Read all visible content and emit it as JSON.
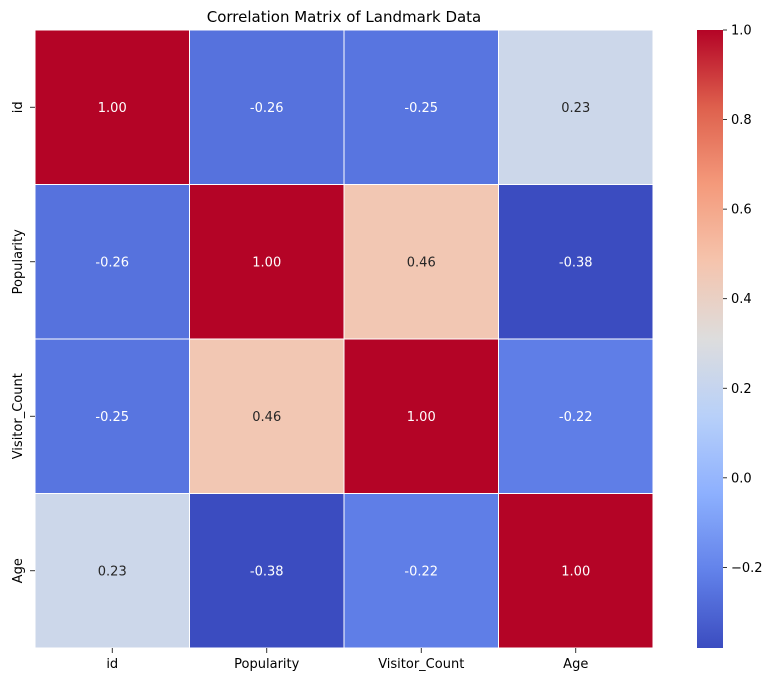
{
  "chart_data": {
    "type": "heatmap",
    "title": "Correlation Matrix of Landmark Data",
    "xlabel": "",
    "ylabel": "",
    "x_categories": [
      "id",
      "Popularity",
      "Visitor_Count",
      "Age"
    ],
    "y_categories": [
      "id",
      "Popularity",
      "Visitor_Count",
      "Age"
    ],
    "values": [
      [
        1.0,
        -0.26,
        -0.25,
        0.23
      ],
      [
        -0.26,
        1.0,
        0.46,
        -0.38
      ],
      [
        -0.25,
        0.46,
        1.0,
        -0.22
      ],
      [
        0.23,
        -0.38,
        -0.22,
        1.0
      ]
    ],
    "value_labels": [
      [
        "1.00",
        "-0.26",
        "-0.25",
        "0.23"
      ],
      [
        "-0.26",
        "1.00",
        "0.46",
        "-0.38"
      ],
      [
        "-0.25",
        "0.46",
        "1.00",
        "-0.22"
      ],
      [
        "0.23",
        "-0.38",
        "-0.22",
        "1.00"
      ]
    ],
    "colormap": "coolwarm",
    "colorbar": {
      "min": -0.38,
      "max": 1.0,
      "ticks": [
        -0.2,
        0.0,
        0.2,
        0.4,
        0.6,
        0.8,
        1.0
      ],
      "tick_labels": [
        "−0.2",
        "0.0",
        "0.2",
        "0.4",
        "0.6",
        "0.8",
        "1.0"
      ]
    },
    "legend": "colorbar-right",
    "grid": false
  }
}
